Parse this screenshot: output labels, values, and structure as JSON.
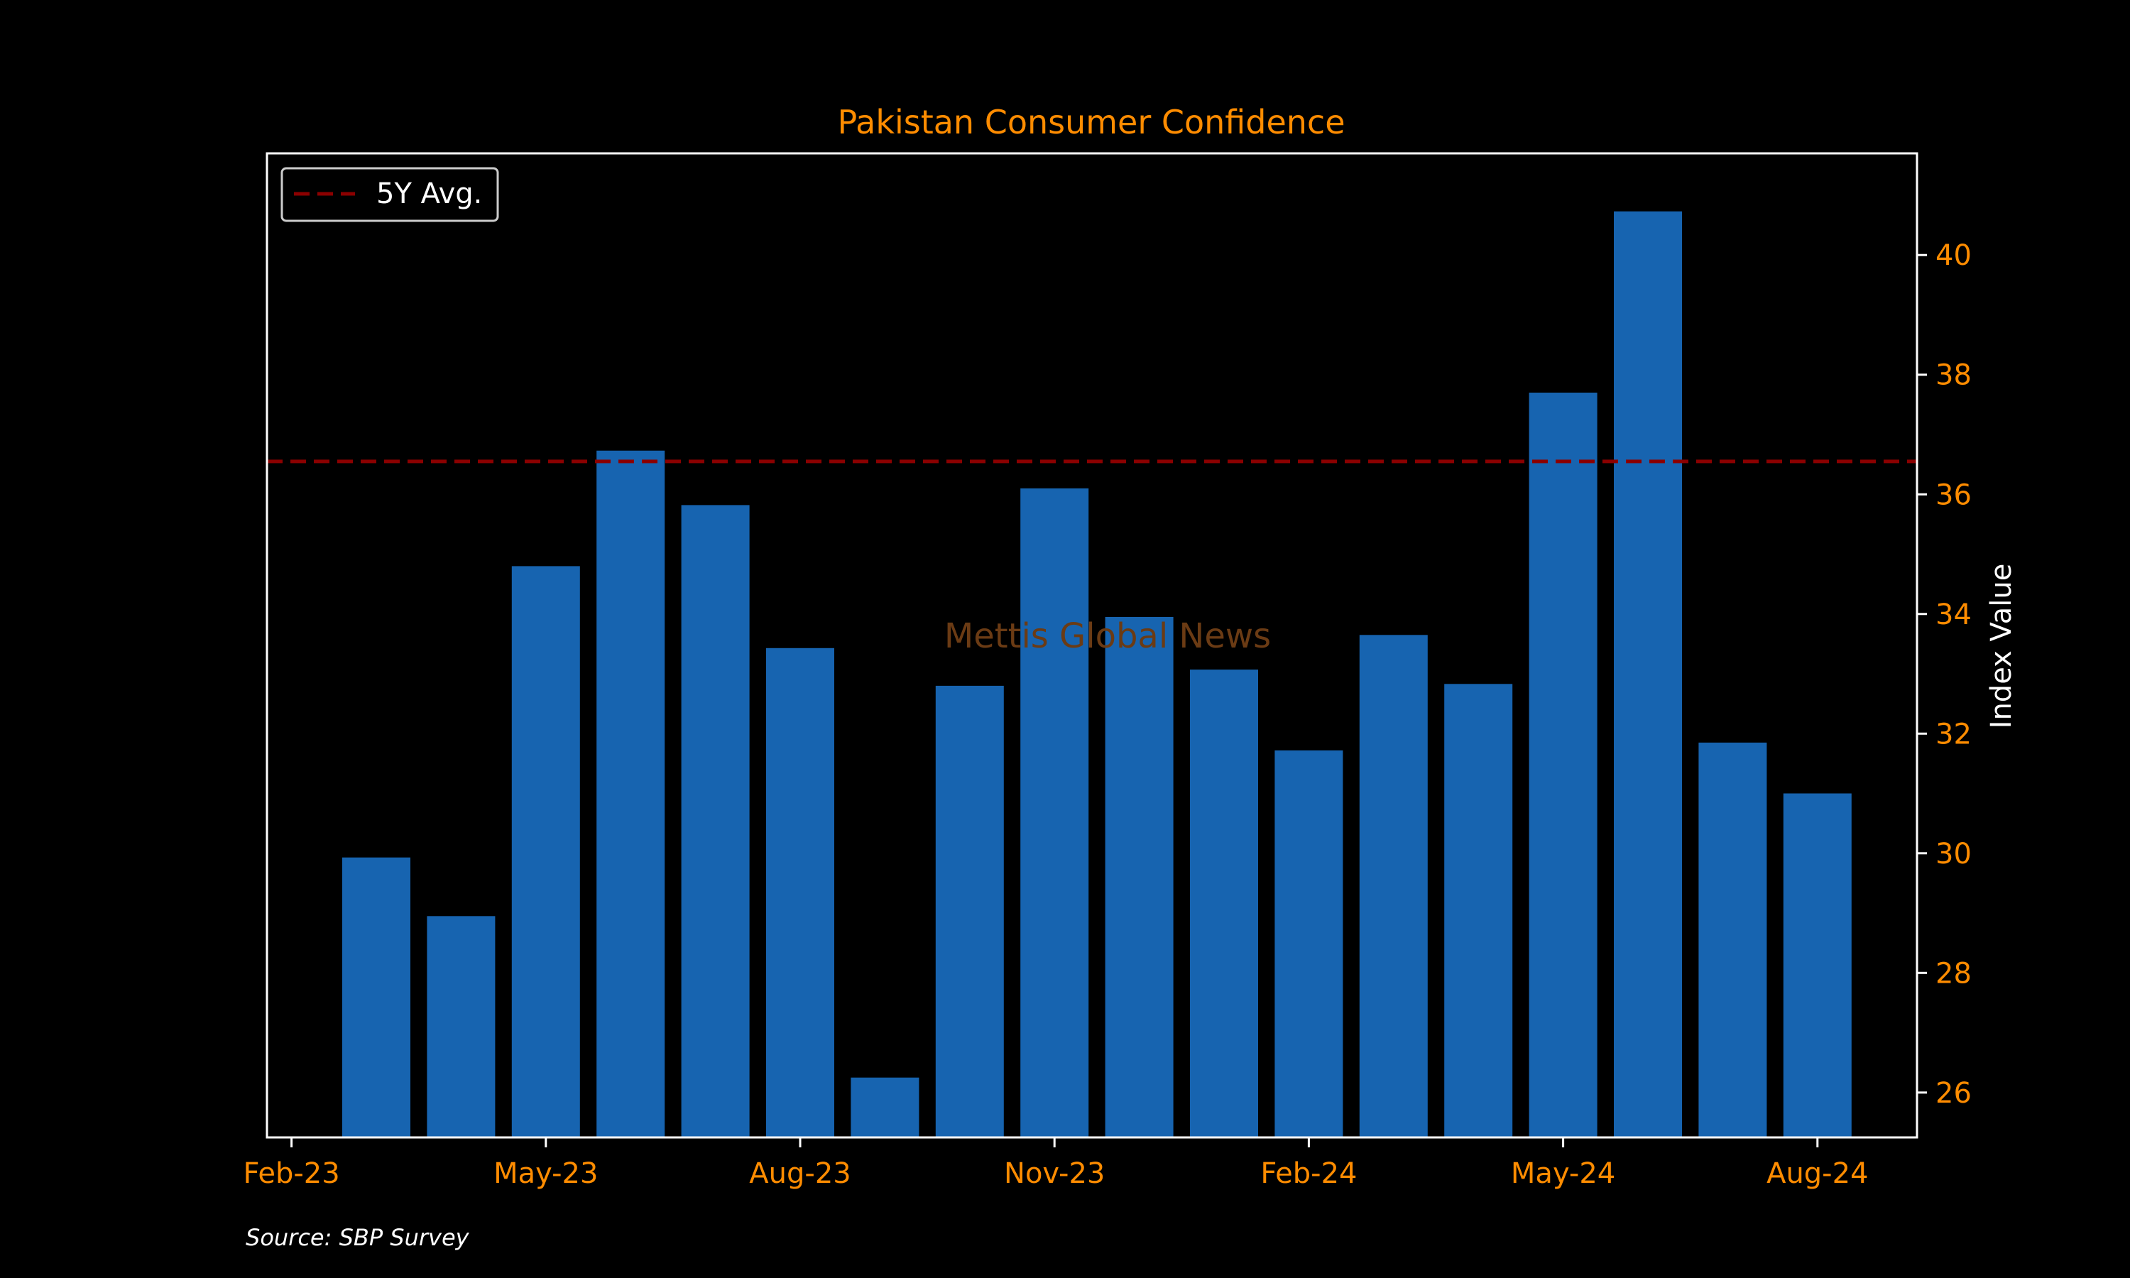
{
  "colors": {
    "background": "#000000",
    "bar": "#1764b0",
    "accent_text": "#ff8c00",
    "avg_line": "#8b0000",
    "frame": "#ffffff",
    "watermark": "#6b3b14"
  },
  "source": "Source: SBP Survey",
  "watermark": "Mettis Global News",
  "chart_data": {
    "type": "bar",
    "title": "Pakistan Consumer Confidence",
    "xlabel": "",
    "ylabel": "Index Value",
    "y_axis_side": "right",
    "ylim": [
      25.25,
      41.7
    ],
    "yticks": [
      26,
      28,
      30,
      32,
      34,
      36,
      38,
      40
    ],
    "grid": false,
    "legend_position": "top-left",
    "categories": [
      "Mar-23",
      "Apr-23",
      "May-23",
      "Jun-23",
      "Jul-23",
      "Aug-23",
      "Sep-23",
      "Oct-23",
      "Nov-23",
      "Dec-23",
      "Jan-24",
      "Feb-24",
      "Mar-24",
      "Apr-24",
      "May-24",
      "Jun-24",
      "Jul-24",
      "Aug-24"
    ],
    "xticks": [
      "Feb-23",
      "May-23",
      "Aug-23",
      "Nov-23",
      "Feb-24",
      "May-24",
      "Aug-24"
    ],
    "series": [
      {
        "values": [
          29.93,
          28.95,
          34.8,
          36.73,
          35.82,
          33.43,
          26.25,
          32.8,
          36.1,
          33.95,
          33.07,
          31.72,
          33.65,
          32.83,
          37.7,
          40.73,
          31.85,
          31.0
        ]
      }
    ],
    "reference_lines": [
      {
        "name": "5Y Avg.",
        "value": 36.55,
        "style": "dashed"
      }
    ]
  }
}
